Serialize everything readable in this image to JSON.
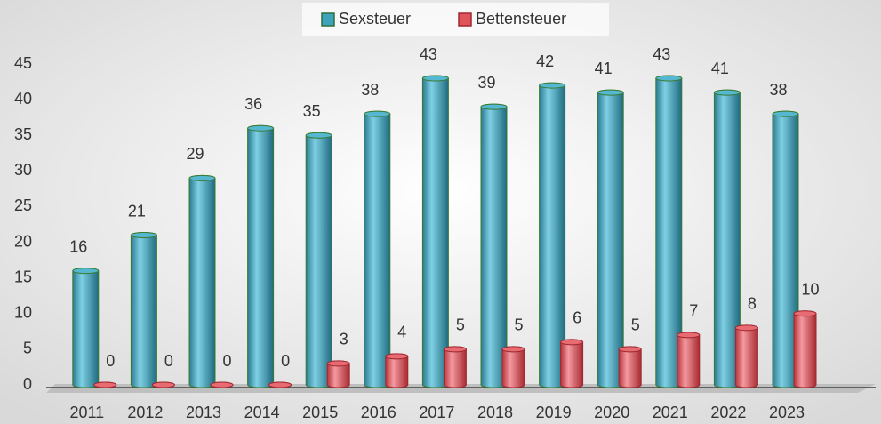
{
  "chart_data": {
    "type": "bar",
    "categories": [
      "2011",
      "2012",
      "2013",
      "2014",
      "2015",
      "2016",
      "2017",
      "2018",
      "2019",
      "2020",
      "2021",
      "2022",
      "2023"
    ],
    "series": [
      {
        "name": "Sexsteuer",
        "color": "#3ea3bf",
        "values": [
          16,
          21,
          29,
          36,
          35,
          38,
          43,
          39,
          42,
          41,
          43,
          41,
          38
        ]
      },
      {
        "name": "Bettensteuer",
        "color": "#e0545b",
        "values": [
          0,
          0,
          0,
          0,
          3,
          4,
          5,
          5,
          6,
          5,
          7,
          8,
          10
        ]
      }
    ],
    "ylim": [
      0,
      45
    ],
    "yticks": [
      0,
      5,
      10,
      15,
      20,
      25,
      30,
      35,
      40,
      45
    ],
    "legend": "top"
  }
}
